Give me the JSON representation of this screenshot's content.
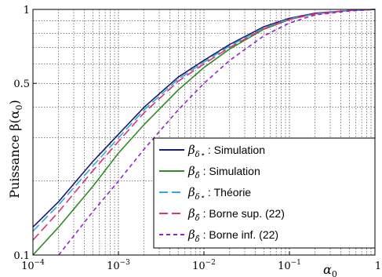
{
  "chart_data": {
    "type": "line",
    "xscale": "log",
    "yscale": "log",
    "xlim": [
      0.0001,
      1
    ],
    "ylim": [
      0.1,
      1
    ],
    "grid": true,
    "xlabel": "α0",
    "ylabel": "Puissance β(α0)",
    "ylabel_parts": {
      "main": "Puissance β(α",
      "sub": "0",
      "close": ")"
    },
    "xlabel_parts": {
      "main": "α",
      "sub": "0"
    },
    "xticks": [
      {
        "value": 0.0001,
        "base": "10",
        "exp": "−4"
      },
      {
        "value": 0.001,
        "base": "10",
        "exp": "−3"
      },
      {
        "value": 0.01,
        "base": "10",
        "exp": "−2"
      },
      {
        "value": 0.1,
        "base": "10",
        "exp": "−1"
      },
      {
        "value": 1,
        "label": "1"
      }
    ],
    "yticks": [
      {
        "value": 0.1,
        "label": "0.1"
      },
      {
        "value": 0.5,
        "label": "0.5"
      },
      {
        "value": 1,
        "label": "1"
      }
    ],
    "legend_position": "bottom-right",
    "series": [
      {
        "name": "β_δ* : Simulation",
        "legend_symbol": "β",
        "legend_sub": "δ⋆",
        "legend_text": " : Simulation",
        "color": "#1a1a6e",
        "dash": "solid",
        "x": [
          0.0001,
          0.0002,
          0.0005,
          0.001,
          0.002,
          0.005,
          0.01,
          0.02,
          0.05,
          0.1,
          0.2,
          0.5,
          1
        ],
        "y": [
          0.13,
          0.165,
          0.24,
          0.31,
          0.4,
          0.53,
          0.62,
          0.72,
          0.85,
          0.92,
          0.965,
          0.99,
          1
        ]
      },
      {
        "name": "β_δ̂ : Simulation",
        "legend_symbol": "β",
        "legend_sub": "δ̂",
        "legend_text": " : Simulation",
        "color": "#2e8b22",
        "dash": "solid",
        "x": [
          0.0001,
          0.0002,
          0.0005,
          0.001,
          0.002,
          0.005,
          0.01,
          0.02,
          0.05,
          0.1,
          0.2,
          0.5,
          1
        ],
        "y": [
          0.1,
          0.13,
          0.19,
          0.26,
          0.34,
          0.47,
          0.58,
          0.69,
          0.83,
          0.91,
          0.96,
          0.99,
          1
        ]
      },
      {
        "name": "β_δ* : Théorie",
        "legend_symbol": "β",
        "legend_sub": "δ⋆",
        "legend_text": " : Théorie",
        "color": "#33aadd",
        "dash": "long",
        "x": [
          0.0001,
          0.0002,
          0.0005,
          0.001,
          0.002,
          0.005,
          0.01,
          0.02,
          0.05,
          0.1,
          0.2,
          0.5,
          1
        ],
        "y": [
          0.125,
          0.16,
          0.23,
          0.3,
          0.39,
          0.52,
          0.61,
          0.71,
          0.84,
          0.915,
          0.96,
          0.99,
          1
        ]
      },
      {
        "name": "β_δ̂ : Borne sup. (22)",
        "legend_symbol": "β",
        "legend_sub": "δ̂",
        "legend_text": " : Borne sup. (22)",
        "color": "#dd3377",
        "dash": "long",
        "x": [
          0.0001,
          0.0002,
          0.0005,
          0.001,
          0.002,
          0.005,
          0.01,
          0.02,
          0.05,
          0.1,
          0.2,
          0.5,
          1
        ],
        "y": [
          0.115,
          0.15,
          0.22,
          0.29,
          0.38,
          0.51,
          0.6,
          0.7,
          0.835,
          0.91,
          0.96,
          0.99,
          1
        ]
      },
      {
        "name": "β_δ̂ : Borne inf. (22)",
        "legend_symbol": "β",
        "legend_sub": "δ̂",
        "legend_text": " : Borne inf. (22)",
        "color": "#9922cc",
        "dash": "short",
        "x": [
          0.0002,
          0.0005,
          0.001,
          0.002,
          0.005,
          0.01,
          0.02,
          0.05,
          0.1,
          0.2,
          0.5,
          1
        ],
        "y": [
          0.1,
          0.15,
          0.2,
          0.27,
          0.39,
          0.5,
          0.62,
          0.78,
          0.88,
          0.95,
          0.985,
          1
        ]
      }
    ]
  }
}
